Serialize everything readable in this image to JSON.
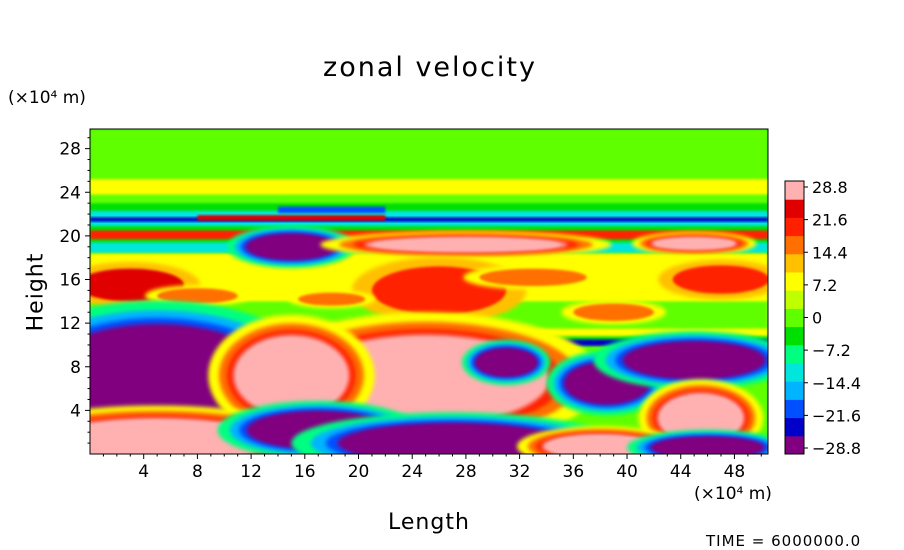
{
  "chart_data": {
    "type": "heatmap",
    "title": "zonal velocity",
    "xlabel": "Length",
    "ylabel": "Height",
    "x_unit": "(×10⁴ m)",
    "y_unit": "(×10⁴ m)",
    "xlim": [
      0,
      50.5
    ],
    "ylim": [
      0,
      29.8
    ],
    "x_ticks": [
      4,
      8,
      12,
      16,
      20,
      24,
      28,
      32,
      36,
      40,
      44,
      48
    ],
    "y_ticks": [
      4,
      8,
      12,
      16,
      20,
      24,
      28
    ],
    "colorbar": {
      "range": [
        -28.8,
        28.8
      ],
      "ticks": [
        "28.8",
        "21.6",
        "14.4",
        "7.2",
        "0",
        "−7.2",
        "−14.4",
        "−21.6",
        "−28.8"
      ],
      "colors": [
        "#800080",
        "#0000c8",
        "#0050ff",
        "#00b4ff",
        "#00e6dc",
        "#00ff80",
        "#00e000",
        "#60ff00",
        "#c0ff00",
        "#ffff00",
        "#ffc000",
        "#ff7000",
        "#ff2000",
        "#e00000",
        "#ffb0b0"
      ]
    },
    "field_layers": [
      {
        "name": "upper-green",
        "x": [
          0,
          50.5
        ],
        "y": [
          23,
          29.8
        ],
        "value": 0
      },
      {
        "name": "yellow-band-24",
        "x": [
          0,
          50.5
        ],
        "y": [
          23.8,
          25.2
        ],
        "value": 7
      },
      {
        "name": "cyan-band-21",
        "x": [
          0,
          50.5
        ],
        "y": [
          20.9,
          22.3
        ],
        "value": -12
      },
      {
        "name": "blue-line-21",
        "x": [
          0,
          50.5
        ],
        "y": [
          21.3,
          21.7
        ],
        "value": -22
      },
      {
        "name": "red-line-21",
        "x": [
          8,
          22
        ],
        "y": [
          21.4,
          21.9
        ],
        "value": 24
      },
      {
        "name": "blue-streak-22",
        "x": [
          14,
          22
        ],
        "y": [
          22.1,
          22.7
        ],
        "value": -20
      },
      {
        "name": "red-band-20",
        "x": [
          0,
          50.5
        ],
        "y": [
          19.7,
          20.5
        ],
        "value": 18
      },
      {
        "name": "cyan-band-19",
        "x": [
          0,
          50.5
        ],
        "y": [
          18.4,
          19.4
        ],
        "value": -10
      },
      {
        "name": "mid-yellow",
        "x": [
          0,
          50.5
        ],
        "y": [
          10.8,
          18.4
        ],
        "value": 7
      },
      {
        "name": "mid-green",
        "x": [
          0,
          50.5
        ],
        "y": [
          11.5,
          14
        ],
        "value": 0
      },
      {
        "name": "lower-green",
        "x": [
          0,
          50.5
        ],
        "y": [
          0,
          10.4
        ],
        "value": 0
      },
      {
        "name": "jet-blue-10",
        "x": [
          0,
          50.5
        ],
        "y": [
          9.9,
          10.5
        ],
        "value": -22
      }
    ],
    "features": [
      {
        "shape": "ellipse",
        "cx": 15,
        "cy": 19,
        "rx": 3.2,
        "ry": 1.1,
        "value": -28.8
      },
      {
        "shape": "ellipse",
        "cx": 28,
        "cy": 19.2,
        "rx": 7,
        "ry": 0.6,
        "value": 28.8
      },
      {
        "shape": "ellipse",
        "cx": 45,
        "cy": 19.3,
        "rx": 3,
        "ry": 0.5,
        "value": 28.8
      },
      {
        "shape": "ellipse",
        "cx": 3,
        "cy": 15.5,
        "rx": 4,
        "ry": 1.5,
        "value": 22
      },
      {
        "shape": "ellipse",
        "cx": 26,
        "cy": 15,
        "rx": 5,
        "ry": 2.2,
        "value": 18
      },
      {
        "shape": "ellipse",
        "cx": 47,
        "cy": 16,
        "rx": 3.6,
        "ry": 1.3,
        "value": 20
      },
      {
        "shape": "ellipse",
        "cx": 33,
        "cy": 16.2,
        "rx": 4,
        "ry": 0.8,
        "value": 14
      },
      {
        "shape": "ellipse",
        "cx": 8,
        "cy": 14.5,
        "rx": 3,
        "ry": 0.7,
        "value": 14
      },
      {
        "shape": "ellipse",
        "cx": 18,
        "cy": 14.2,
        "rx": 2.5,
        "ry": 0.6,
        "value": 14
      },
      {
        "shape": "ellipse",
        "cx": 39,
        "cy": 13,
        "rx": 3,
        "ry": 0.8,
        "value": 14
      },
      {
        "shape": "ellipse",
        "cx": 5,
        "cy": 7.2,
        "rx": 8,
        "ry": 4.4,
        "value": -28.8
      },
      {
        "shape": "ellipse",
        "cx": 25,
        "cy": 6.8,
        "rx": 8.5,
        "ry": 3.8,
        "value": 28.8
      },
      {
        "shape": "ellipse",
        "cx": 15,
        "cy": 7.2,
        "rx": 4,
        "ry": 3.4,
        "value": 28.8
      },
      {
        "shape": "ellipse",
        "cx": 31,
        "cy": 8.4,
        "rx": 2.2,
        "ry": 1.2,
        "value": -28.8
      },
      {
        "shape": "ellipse",
        "cx": 38.5,
        "cy": 6.5,
        "rx": 3,
        "ry": 1.8,
        "value": -28.8
      },
      {
        "shape": "ellipse",
        "cx": 45,
        "cy": 8.6,
        "rx": 5,
        "ry": 1.6,
        "value": -28.8
      },
      {
        "shape": "ellipse",
        "cx": 45.5,
        "cy": 3.3,
        "rx": 3,
        "ry": 2.1,
        "value": 28.8
      },
      {
        "shape": "ellipse",
        "cx": 5,
        "cy": 1.2,
        "rx": 8,
        "ry": 1.9,
        "value": 28.8
      },
      {
        "shape": "ellipse",
        "cx": 17,
        "cy": 2.2,
        "rx": 5,
        "ry": 1.6,
        "value": -28.8
      },
      {
        "shape": "ellipse",
        "cx": 27,
        "cy": 1,
        "rx": 8,
        "ry": 1.7,
        "value": -28.8
      },
      {
        "shape": "ellipse",
        "cx": 38,
        "cy": 0.7,
        "rx": 4,
        "ry": 1,
        "value": 28.8
      },
      {
        "shape": "ellipse",
        "cx": 46,
        "cy": 0.6,
        "rx": 4,
        "ry": 0.9,
        "value": -28.8
      }
    ]
  },
  "timestamp": "TIME = 6000000.0"
}
